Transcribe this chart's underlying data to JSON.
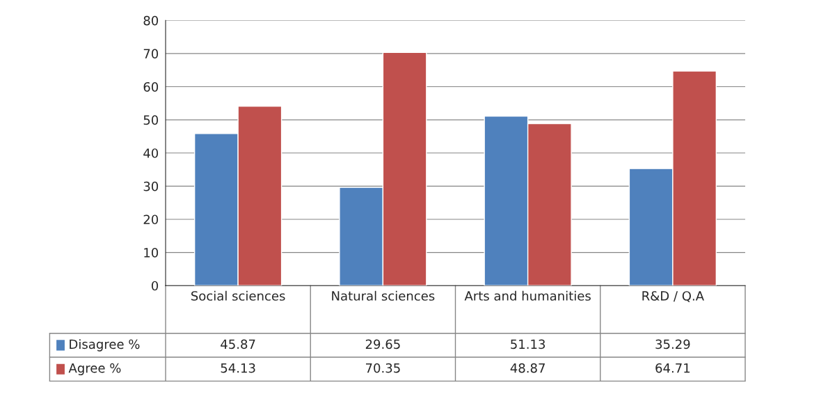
{
  "chart_data": {
    "type": "bar",
    "categories": [
      "Social sciences",
      "Natural sciences",
      "Arts and humanities",
      "R&D / Q.A"
    ],
    "series": [
      {
        "name": "Disagree %",
        "color": "#4f81bd",
        "values": [
          45.87,
          29.65,
          51.13,
          35.29
        ]
      },
      {
        "name": "Agree %",
        "color": "#c0504d",
        "values": [
          54.13,
          70.35,
          48.87,
          64.71
        ]
      }
    ],
    "ylim": [
      0,
      80
    ],
    "yticks": [
      0,
      10,
      20,
      30,
      40,
      50,
      60,
      70,
      80
    ],
    "grid": "y",
    "legend": "bottom left",
    "data_labels": true
  }
}
